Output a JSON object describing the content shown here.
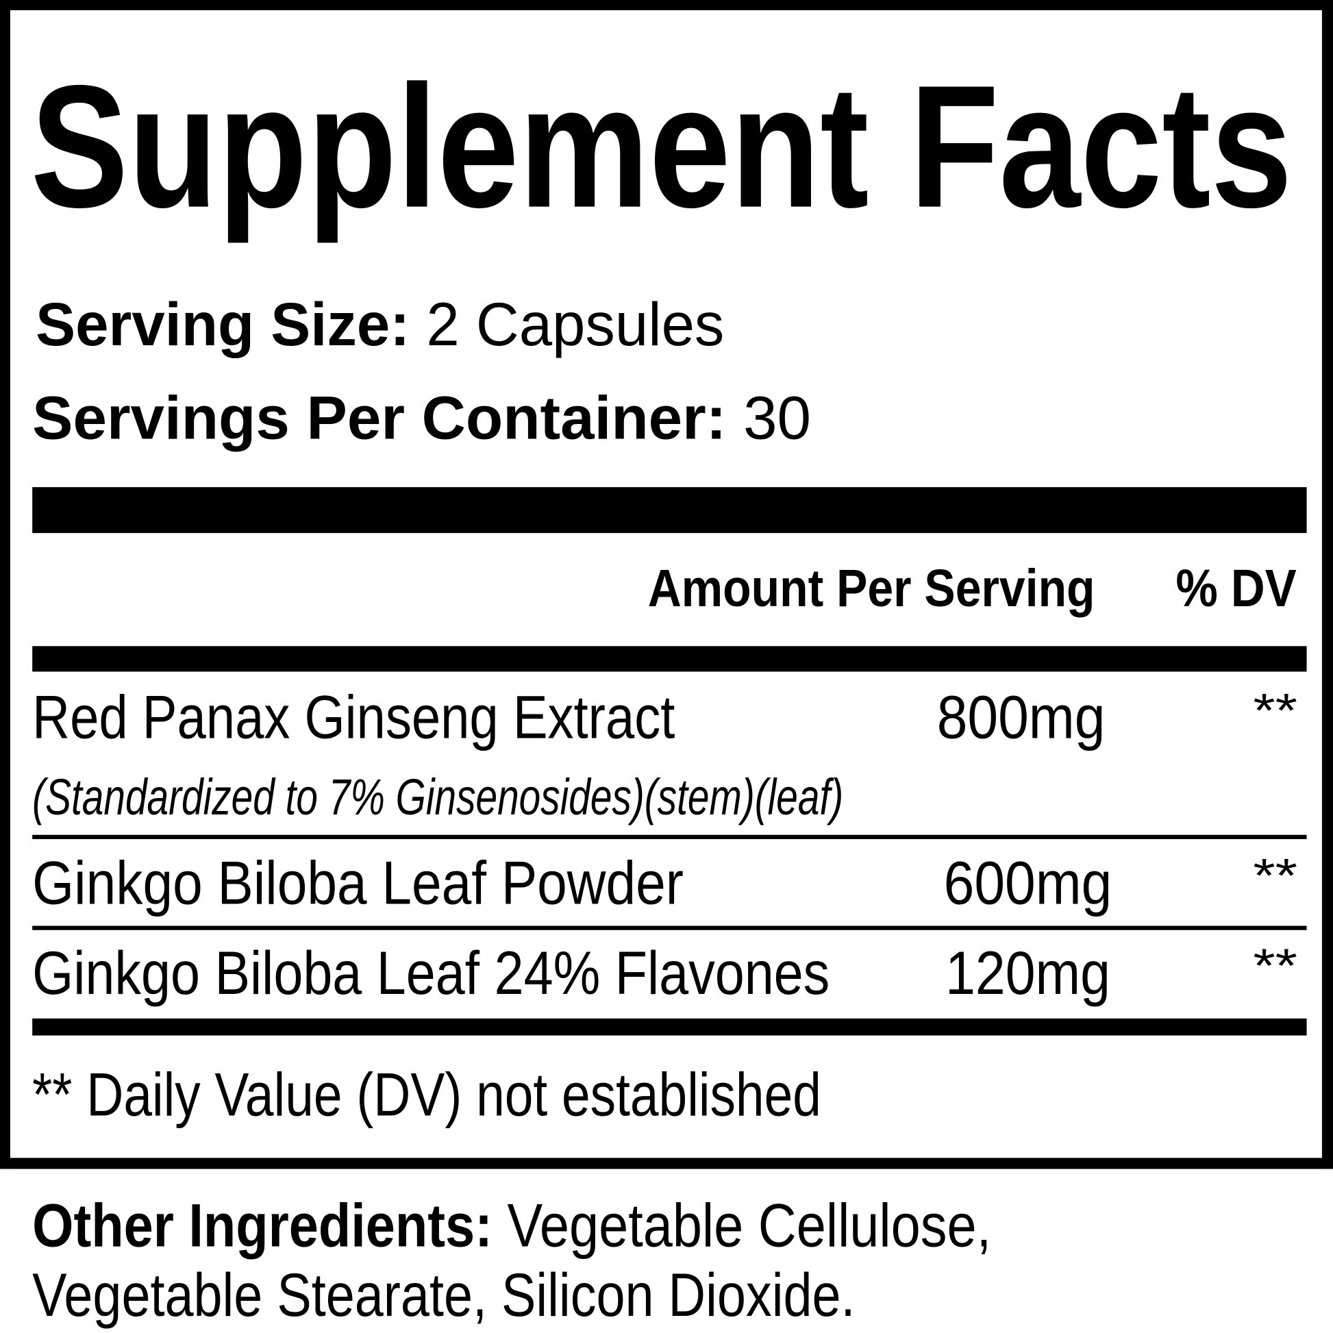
{
  "label": {
    "title": "Supplement Facts",
    "serving_size_label": "Serving Size:",
    "serving_size_value": "2 Capsules",
    "servings_per_container_label": "Servings Per Container:",
    "servings_per_container_value": "30",
    "header_amount": "Amount Per Serving",
    "header_dv": "% DV",
    "ingredients": [
      {
        "name": "Red Panax Ginseng Extract",
        "note": "(Standardized to 7% Ginsenosides)(stem)(leaf)",
        "amount": "800mg",
        "dv": "**"
      },
      {
        "name": "Ginkgo Biloba Leaf Powder",
        "amount": "600mg",
        "dv": "**"
      },
      {
        "name": "Ginkgo Biloba Leaf 24% Flavones",
        "amount": "120mg",
        "dv": "**"
      }
    ],
    "footnote": "** Daily Value (DV) not established"
  },
  "other_ingredients": {
    "label": "Other Ingredients:",
    "line1": " Vegetable Cellulose,",
    "line2": "Vegetable Stearate, Silicon Dioxide."
  }
}
